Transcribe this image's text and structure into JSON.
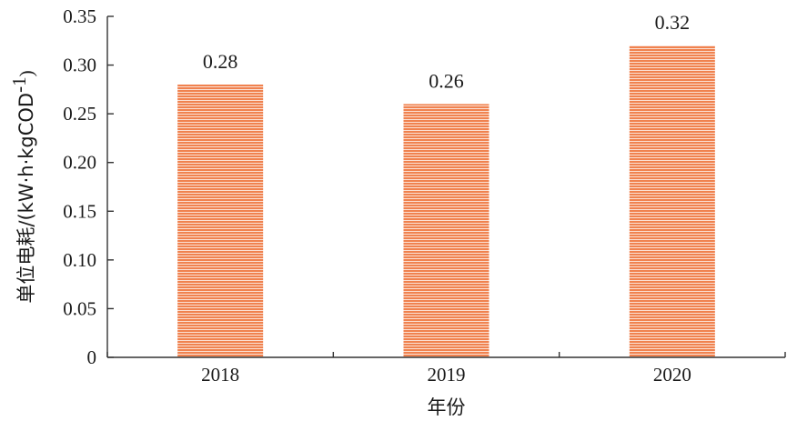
{
  "chart_data": {
    "type": "bar",
    "categories": [
      "2018",
      "2019",
      "2020"
    ],
    "values": [
      0.28,
      0.26,
      0.32
    ],
    "data_labels": [
      "0.28",
      "0.26",
      "0.32"
    ],
    "xlabel": "年份",
    "ylabel": {
      "main": "单位电耗/(kW·h·kgCOD",
      "superscript": "-1",
      "close": ")"
    },
    "ylim": [
      0,
      0.35
    ],
    "yticks": [
      0,
      0.05,
      0.1,
      0.15,
      0.2,
      0.25,
      0.3,
      0.35
    ],
    "ytick_labels": [
      "0",
      "0.05",
      "0.10",
      "0.15",
      "0.20",
      "0.25",
      "0.30",
      "0.35"
    ],
    "grid": false,
    "bar_color": "#f0824f",
    "bar_stripe_color": "#ffffff",
    "bar_pattern": "horizontal-stripes"
  }
}
